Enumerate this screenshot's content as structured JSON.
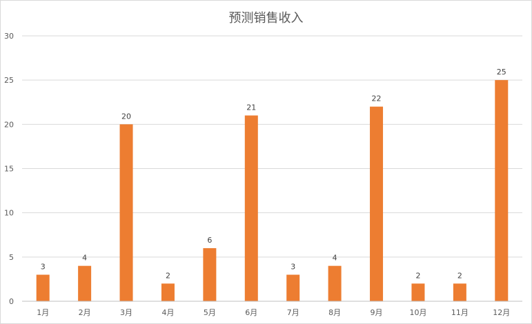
{
  "chart_data": {
    "type": "bar",
    "title": "预测销售收入",
    "categories": [
      "1月",
      "2月",
      "3月",
      "4月",
      "5月",
      "6月",
      "7月",
      "8月",
      "9月",
      "10月",
      "11月",
      "12月"
    ],
    "values": [
      3,
      4,
      20,
      2,
      6,
      21,
      3,
      4,
      22,
      2,
      2,
      25
    ],
    "ylim": [
      0,
      30
    ],
    "yticks": [
      0,
      5,
      10,
      15,
      20,
      25,
      30
    ],
    "grid": true,
    "legend": "none",
    "data_labels": true,
    "colors": {
      "bar": "#ed7d31",
      "grid": "#d9d9d9",
      "axis": "#bfbfbf",
      "text": "#595959"
    }
  }
}
